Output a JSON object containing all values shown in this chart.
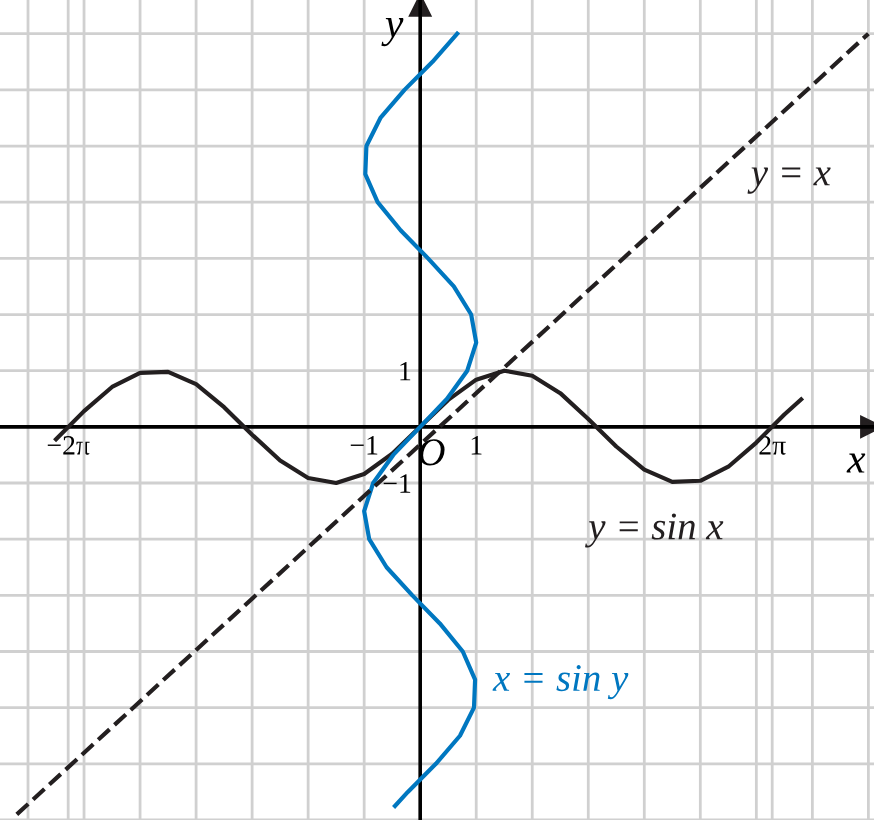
{
  "chart_data": {
    "type": "line",
    "xlabel": "x",
    "ylabel": "y",
    "annotations": [
      "O"
    ],
    "xlim": [
      -7.5,
      8.1
    ],
    "ylim": [
      -7.0,
      7.6
    ],
    "xticks": [
      {
        "value": -7,
        "label": null
      },
      {
        "value": -6.283,
        "label": "−2π"
      },
      {
        "value": -6,
        "label": null
      },
      {
        "value": -5,
        "label": null
      },
      {
        "value": -4,
        "label": null
      },
      {
        "value": -3,
        "label": null
      },
      {
        "value": -2,
        "label": null
      },
      {
        "value": -1,
        "label": "−1"
      },
      {
        "value": 1,
        "label": "1"
      },
      {
        "value": 2,
        "label": null
      },
      {
        "value": 3,
        "label": null
      },
      {
        "value": 4,
        "label": null
      },
      {
        "value": 5,
        "label": null
      },
      {
        "value": 6,
        "label": null
      },
      {
        "value": 6.283,
        "label": "2π"
      },
      {
        "value": 7,
        "label": null
      },
      {
        "value": 8,
        "label": null
      }
    ],
    "yticks": [
      {
        "value": -7,
        "label": null
      },
      {
        "value": -6,
        "label": null
      },
      {
        "value": -5,
        "label": null
      },
      {
        "value": -4,
        "label": null
      },
      {
        "value": -3,
        "label": null
      },
      {
        "value": -2,
        "label": null
      },
      {
        "value": -1,
        "label": "−1"
      },
      {
        "value": 1,
        "label": "1"
      },
      {
        "value": 2,
        "label": null
      },
      {
        "value": 3,
        "label": null
      },
      {
        "value": 4,
        "label": null
      },
      {
        "value": 5,
        "label": null
      },
      {
        "value": 6,
        "label": null
      },
      {
        "value": 7,
        "label": null
      }
    ],
    "grid": true,
    "marker": "none",
    "series": [
      {
        "name": "y = sin x",
        "color": "#231f20",
        "line_style": "solid",
        "x": [
          -6.5,
          -6,
          -5.5,
          -5,
          -4.5,
          -4,
          -3.5,
          -3,
          -2.5,
          -2,
          -1.5,
          -1,
          -0.5,
          0,
          0.5,
          1,
          1.5,
          2,
          2.5,
          3,
          3.5,
          4,
          4.5,
          5,
          5.5,
          6,
          6.5,
          6.8
        ],
        "values": [
          -0.22,
          0.28,
          0.71,
          0.96,
          0.98,
          0.76,
          0.35,
          -0.14,
          -0.6,
          -0.91,
          -1.0,
          -0.84,
          -0.48,
          0,
          0.48,
          0.84,
          1.0,
          0.91,
          0.6,
          0.14,
          -0.35,
          -0.76,
          -0.98,
          -0.96,
          -0.71,
          -0.28,
          0.22,
          0.49
        ]
      },
      {
        "name": "x = sin y",
        "color": "#0077c0",
        "line_style": "solid",
        "x": [
          -0.45,
          -0.22,
          0.28,
          0.71,
          0.96,
          0.98,
          0.76,
          0.35,
          -0.14,
          -0.6,
          -0.91,
          -1.0,
          -0.84,
          -0.48,
          0,
          0.48,
          0.84,
          1.0,
          0.91,
          0.6,
          0.14,
          -0.35,
          -0.76,
          -0.98,
          -0.96,
          -0.71,
          -0.28,
          0.22,
          0.66
        ],
        "values": [
          -6.75,
          -6.5,
          -6,
          -5.5,
          -5,
          -4.5,
          -4,
          -3.5,
          -3,
          -2.5,
          -2,
          -1.5,
          -1,
          -0.5,
          0,
          0.5,
          1,
          1.5,
          2,
          2.5,
          3,
          3.5,
          4,
          4.5,
          5,
          5.5,
          6,
          6.5,
          7.0
        ]
      },
      {
        "name": "y = x",
        "color": "#231f20",
        "line_style": "dashed",
        "x": [
          -7.2,
          8.0
        ],
        "values": [
          -6.9,
          7.0
        ]
      }
    ]
  }
}
